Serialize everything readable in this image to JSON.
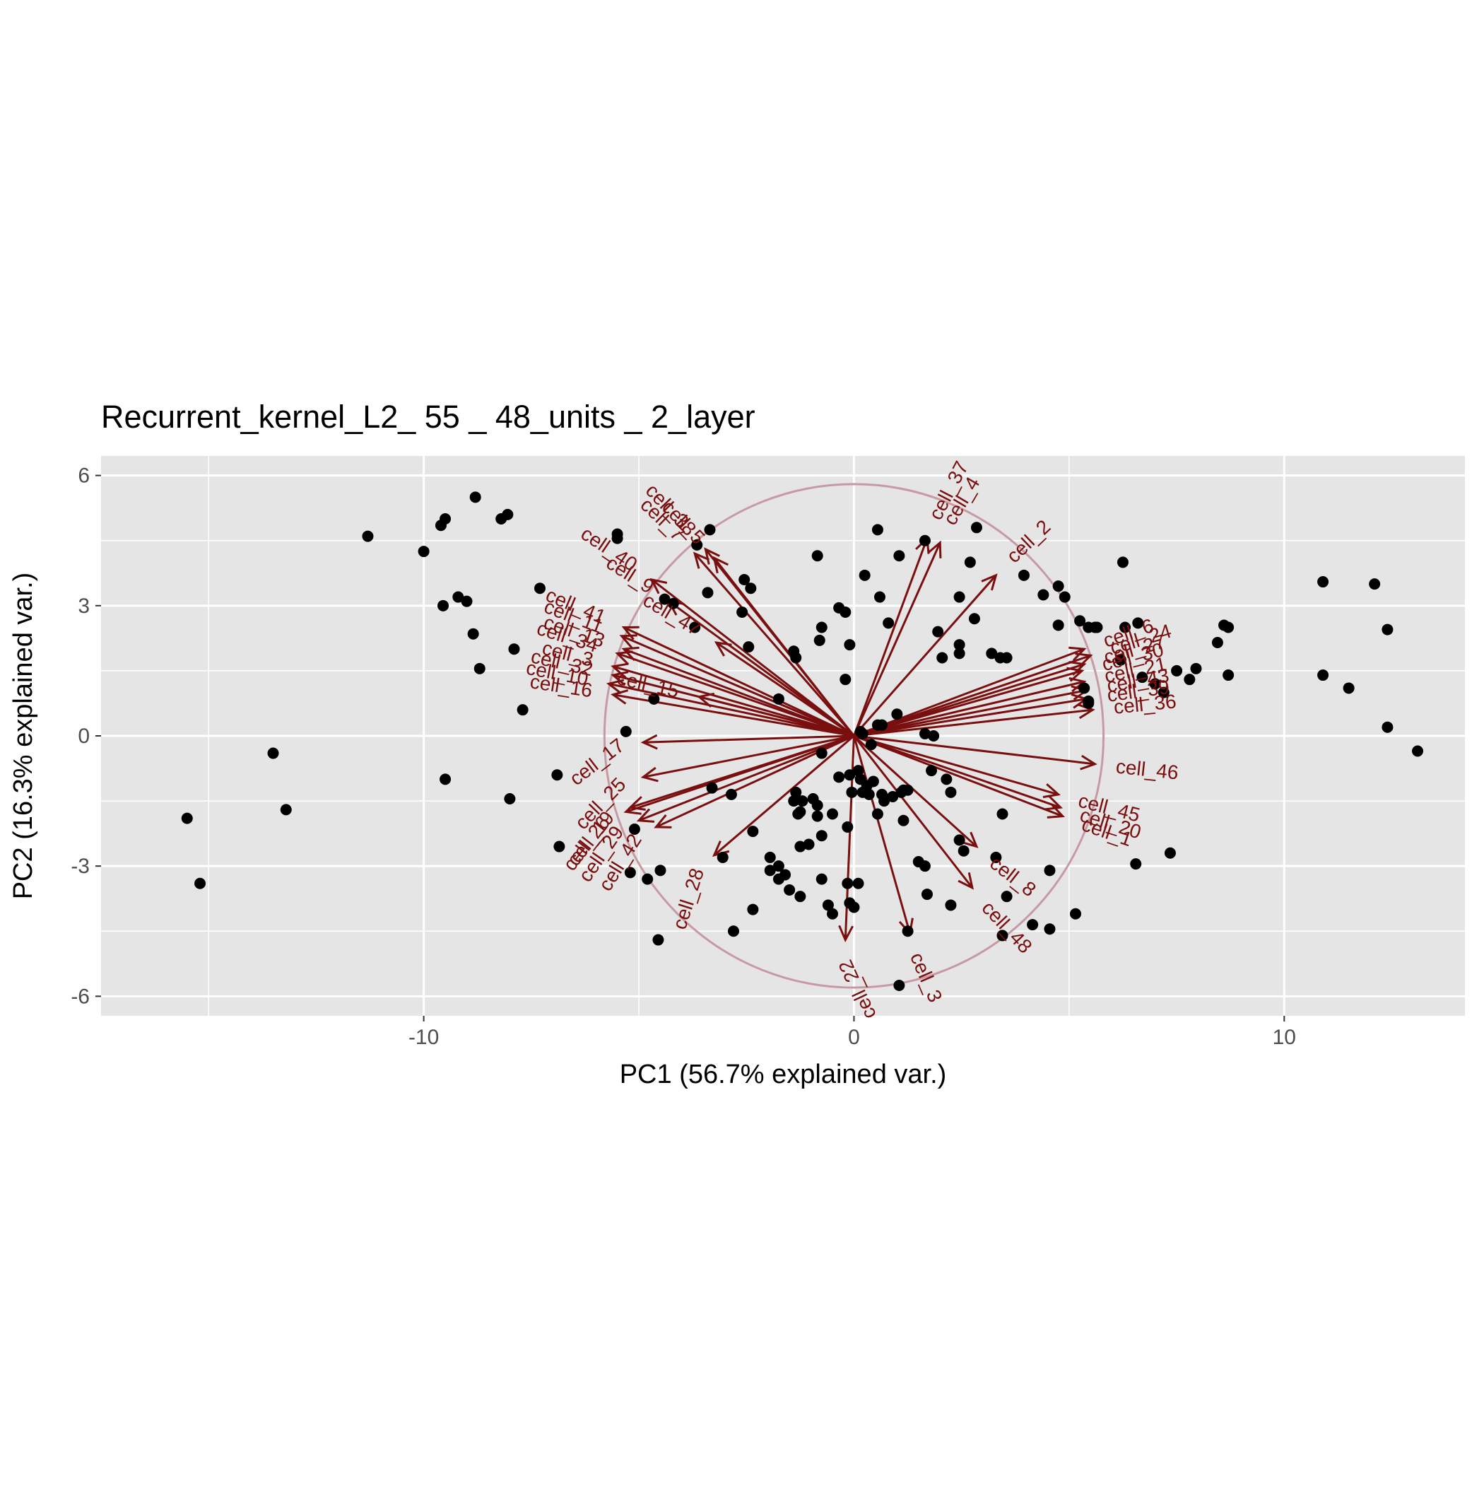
{
  "chart_data": {
    "type": "scatter",
    "title": "Recurrent_kernel_L2_ 55 _ 48_units _ 2_layer",
    "xlabel": "PC1 (56.7% explained var.)",
    "ylabel": "PC2 (16.3% explained var.)",
    "xlim": [
      -17.5,
      14.2
    ],
    "ylim": [
      -6.45,
      6.45
    ],
    "x_ticks": [
      -10,
      0,
      10
    ],
    "x_tick_labels": [
      "-10",
      "0",
      "10"
    ],
    "y_ticks": [
      -6,
      -3,
      0,
      3,
      6
    ],
    "y_tick_labels": [
      "-6",
      "-3",
      "0",
      "3",
      "6"
    ],
    "grid": true,
    "legend": "none",
    "colors": {
      "panel": "#e5e5e5",
      "grid": "#ffffff",
      "points": "#000000",
      "arrows": "#7a0f0f",
      "circle": "#c79aa3"
    },
    "points": [
      [
        -15.5,
        -1.9
      ],
      [
        -15.2,
        -3.4
      ],
      [
        -13.5,
        -0.4
      ],
      [
        -13.2,
        -1.7
      ],
      [
        -11.3,
        4.6
      ],
      [
        -10,
        4.25
      ],
      [
        -9.6,
        4.85
      ],
      [
        -9.5,
        5.0
      ],
      [
        -9.55,
        3.0
      ],
      [
        -9.5,
        -1.0
      ],
      [
        -9.2,
        3.2
      ],
      [
        -9.0,
        3.1
      ],
      [
        -8.8,
        5.5
      ],
      [
        -8.85,
        2.35
      ],
      [
        -8.7,
        1.55
      ],
      [
        -8.2,
        5.0
      ],
      [
        -8.05,
        5.1
      ],
      [
        -7.9,
        2.0
      ],
      [
        -8.0,
        -1.45
      ],
      [
        -7.7,
        0.6
      ],
      [
        -7.3,
        3.4
      ],
      [
        -6.9,
        -0.9
      ],
      [
        -6.85,
        -2.55
      ],
      [
        -5.5,
        4.55
      ],
      [
        -5.5,
        4.65
      ],
      [
        -5.3,
        0.1
      ],
      [
        -5.2,
        -3.15
      ],
      [
        -5.1,
        -2.15
      ],
      [
        -4.8,
        -3.3
      ],
      [
        -4.65,
        0.85
      ],
      [
        -4.5,
        -3.1
      ],
      [
        -4.4,
        3.15
      ],
      [
        -4.2,
        3.05
      ],
      [
        -4.55,
        -4.7
      ],
      [
        -3.7,
        2.5
      ],
      [
        -3.65,
        4.4
      ],
      [
        -3.35,
        4.75
      ],
      [
        -3.4,
        3.3
      ],
      [
        -3.3,
        -1.2
      ],
      [
        -3.05,
        -2.8
      ],
      [
        -2.85,
        -1.35
      ],
      [
        -2.8,
        -4.5
      ],
      [
        -2.6,
        2.85
      ],
      [
        -2.55,
        3.6
      ],
      [
        -2.45,
        2.05
      ],
      [
        -2.4,
        3.4
      ],
      [
        -2.35,
        -2.2
      ],
      [
        -2.35,
        -4.0
      ],
      [
        -1.75,
        0.85
      ],
      [
        -1.95,
        -2.8
      ],
      [
        -1.95,
        -3.1
      ],
      [
        -1.75,
        -3.3
      ],
      [
        -1.75,
        -3.0
      ],
      [
        -1.6,
        -3.2
      ],
      [
        -1.5,
        -3.55
      ],
      [
        -1.4,
        1.95
      ],
      [
        -1.35,
        1.8
      ],
      [
        -1.35,
        -1.3
      ],
      [
        -1.4,
        -1.5
      ],
      [
        -1.25,
        -3.7
      ],
      [
        -1.3,
        -1.8
      ],
      [
        -1.25,
        -2.55
      ],
      [
        -1.25,
        -1.75
      ],
      [
        -1.2,
        -1.5
      ],
      [
        -1.05,
        -2.5
      ],
      [
        -0.95,
        -1.45
      ],
      [
        -0.85,
        -1.6
      ],
      [
        -0.85,
        -1.85
      ],
      [
        -0.85,
        4.15
      ],
      [
        -0.8,
        2.2
      ],
      [
        -0.75,
        2.5
      ],
      [
        -0.75,
        -0.4
      ],
      [
        -0.75,
        -3.3
      ],
      [
        -0.75,
        -2.3
      ],
      [
        -0.6,
        -3.9
      ],
      [
        -0.5,
        -1.8
      ],
      [
        -0.5,
        -4.1
      ],
      [
        -0.35,
        2.95
      ],
      [
        -0.35,
        -0.95
      ],
      [
        -0.2,
        2.85
      ],
      [
        -0.2,
        1.3
      ],
      [
        -0.15,
        -2.1
      ],
      [
        -0.15,
        -3.4
      ],
      [
        -0.1,
        2.1
      ],
      [
        -0.1,
        -3.85
      ],
      [
        -0.1,
        -0.9
      ],
      [
        -0.05,
        -1.3
      ],
      [
        0.0,
        -3.95
      ],
      [
        0.1,
        -3.4
      ],
      [
        0.1,
        -0.8
      ],
      [
        0.15,
        0.1
      ],
      [
        0.2,
        0.05
      ],
      [
        0.15,
        -1.0
      ],
      [
        0.2,
        -1.3
      ],
      [
        0.25,
        3.7
      ],
      [
        0.3,
        -1.15
      ],
      [
        0.35,
        -1.35
      ],
      [
        0.4,
        -0.2
      ],
      [
        0.45,
        -1.05
      ],
      [
        0.55,
        0.25
      ],
      [
        0.55,
        4.75
      ],
      [
        0.55,
        -1.8
      ],
      [
        0.6,
        3.2
      ],
      [
        0.65,
        -1.35
      ],
      [
        0.65,
        0.25
      ],
      [
        0.7,
        -1.5
      ],
      [
        0.8,
        2.6
      ],
      [
        0.9,
        -1.4
      ],
      [
        1.0,
        0.5
      ],
      [
        1.05,
        4.15
      ],
      [
        1.1,
        -1.3
      ],
      [
        1.15,
        -1.25
      ],
      [
        1.25,
        -1.25
      ],
      [
        1.15,
        -1.95
      ],
      [
        1.05,
        -5.75
      ],
      [
        1.25,
        -4.5
      ],
      [
        1.5,
        -2.9
      ],
      [
        1.65,
        0.05
      ],
      [
        1.65,
        4.5
      ],
      [
        1.7,
        -3.65
      ],
      [
        1.65,
        -3.0
      ],
      [
        1.8,
        -0.8
      ],
      [
        1.85,
        0.0
      ],
      [
        1.95,
        2.4
      ],
      [
        2.05,
        1.8
      ],
      [
        2.15,
        -1.0
      ],
      [
        2.25,
        -3.9
      ],
      [
        2.25,
        -1.3
      ],
      [
        2.45,
        3.2
      ],
      [
        2.45,
        2.1
      ],
      [
        2.45,
        1.9
      ],
      [
        2.45,
        -2.4
      ],
      [
        2.55,
        -2.65
      ],
      [
        2.7,
        4.0
      ],
      [
        2.8,
        2.7
      ],
      [
        2.85,
        4.8
      ],
      [
        3.2,
        1.9
      ],
      [
        3.3,
        -2.8
      ],
      [
        3.4,
        1.8
      ],
      [
        3.45,
        -1.8
      ],
      [
        3.55,
        1.8
      ],
      [
        3.55,
        -3.7
      ],
      [
        3.45,
        -4.6
      ],
      [
        3.95,
        3.7
      ],
      [
        4.15,
        -4.35
      ],
      [
        4.4,
        3.25
      ],
      [
        4.55,
        -4.45
      ],
      [
        4.55,
        -3.1
      ],
      [
        4.75,
        3.45
      ],
      [
        4.75,
        2.55
      ],
      [
        4.9,
        3.2
      ],
      [
        5.25,
        2.65
      ],
      [
        5.15,
        -4.1
      ],
      [
        5.45,
        2.5
      ],
      [
        5.6,
        2.5
      ],
      [
        5.45,
        0.75
      ],
      [
        5.45,
        0.8
      ],
      [
        5.65,
        2.5
      ],
      [
        5.35,
        1.1
      ],
      [
        6.25,
        4.0
      ],
      [
        6.2,
        1.75
      ],
      [
        6.3,
        2.5
      ],
      [
        6.55,
        -2.95
      ],
      [
        6.6,
        2.6
      ],
      [
        6.7,
        1.35
      ],
      [
        7.0,
        1.2
      ],
      [
        7.2,
        1.0
      ],
      [
        7.35,
        -2.7
      ],
      [
        7.5,
        1.5
      ],
      [
        7.8,
        1.3
      ],
      [
        7.95,
        1.55
      ],
      [
        8.45,
        2.15
      ],
      [
        8.6,
        2.55
      ],
      [
        8.7,
        2.5
      ],
      [
        8.7,
        1.4
      ],
      [
        10.9,
        3.55
      ],
      [
        10.9,
        1.4
      ],
      [
        11.5,
        1.1
      ],
      [
        12.1,
        3.5
      ],
      [
        12.4,
        2.45
      ],
      [
        12.4,
        0.2
      ],
      [
        13.1,
        -0.35
      ]
    ],
    "circle_radius": 5.8,
    "loadings": [
      {
        "name": "cell_37",
        "x": 1.7,
        "y": 4.55
      },
      {
        "name": "cell_4",
        "x": 2.0,
        "y": 4.45
      },
      {
        "name": "cell_2",
        "x": 3.3,
        "y": 3.7
      },
      {
        "name": "cell_7",
        "x": -3.7,
        "y": 4.2
      },
      {
        "name": "cell_5",
        "x": -3.25,
        "y": 4.1
      },
      {
        "name": "cell_38",
        "x": -3.45,
        "y": 4.3
      },
      {
        "name": "cell_40",
        "x": -4.7,
        "y": 3.6
      },
      {
        "name": "cell_9",
        "x": -4.3,
        "y": 3.1
      },
      {
        "name": "cell_47",
        "x": -3.2,
        "y": 2.15
      },
      {
        "name": "cell_41",
        "x": -5.35,
        "y": 2.5
      },
      {
        "name": "cell_11",
        "x": -5.4,
        "y": 2.3
      },
      {
        "name": "cell_13",
        "x": -5.35,
        "y": 2.0
      },
      {
        "name": "cell_34",
        "x": -5.5,
        "y": 1.9
      },
      {
        "name": "cell_3",
        "x": -5.6,
        "y": 1.6
      },
      {
        "name": "cell_32",
        "x": -5.6,
        "y": 1.4
      },
      {
        "name": "cell_10",
        "x": -5.7,
        "y": 1.2
      },
      {
        "name": "cell_16",
        "x": -5.6,
        "y": 0.95
      },
      {
        "name": "cell_15",
        "x": -3.6,
        "y": 0.9
      },
      {
        "name": "cell_17",
        "x": -4.9,
        "y": -0.15
      },
      {
        "name": "cell_25",
        "x": -4.9,
        "y": -0.95
      },
      {
        "name": "cell_26",
        "x": -5.3,
        "y": -1.75
      },
      {
        "name": "cell_29",
        "x": -5.0,
        "y": -1.95
      },
      {
        "name": "cell_19",
        "x": -5.2,
        "y": -1.65
      },
      {
        "name": "cell_42",
        "x": -4.6,
        "y": -2.1
      },
      {
        "name": "cell_28",
        "x": -3.25,
        "y": -2.75
      },
      {
        "name": "cell_22",
        "x": -0.2,
        "y": -4.7
      },
      {
        "name": "cell_3",
        "x": 1.3,
        "y": -4.55
      },
      {
        "name": "cell_48",
        "x": 2.75,
        "y": -3.5
      },
      {
        "name": "cell_8",
        "x": 2.85,
        "y": -2.55
      },
      {
        "name": "cell_46",
        "x": 5.6,
        "y": -0.65
      },
      {
        "name": "cell_45",
        "x": 4.75,
        "y": -1.35
      },
      {
        "name": "cell_1",
        "x": 4.85,
        "y": -1.85
      },
      {
        "name": "cell_20",
        "x": 4.8,
        "y": -1.65
      },
      {
        "name": "cell_36",
        "x": 5.55,
        "y": 0.6
      },
      {
        "name": "cell_6",
        "x": 5.35,
        "y": 2.0
      },
      {
        "name": "cell_27",
        "x": 5.35,
        "y": 1.65
      },
      {
        "name": "cell_21",
        "x": 5.35,
        "y": 1.25
      },
      {
        "name": "cell_43",
        "x": 5.4,
        "y": 1.05
      },
      {
        "name": "cell_39",
        "x": 5.4,
        "y": 0.85
      },
      {
        "name": "cell_24",
        "x": 5.5,
        "y": 1.85
      },
      {
        "name": "cell_30",
        "x": 5.3,
        "y": 1.5
      }
    ]
  }
}
